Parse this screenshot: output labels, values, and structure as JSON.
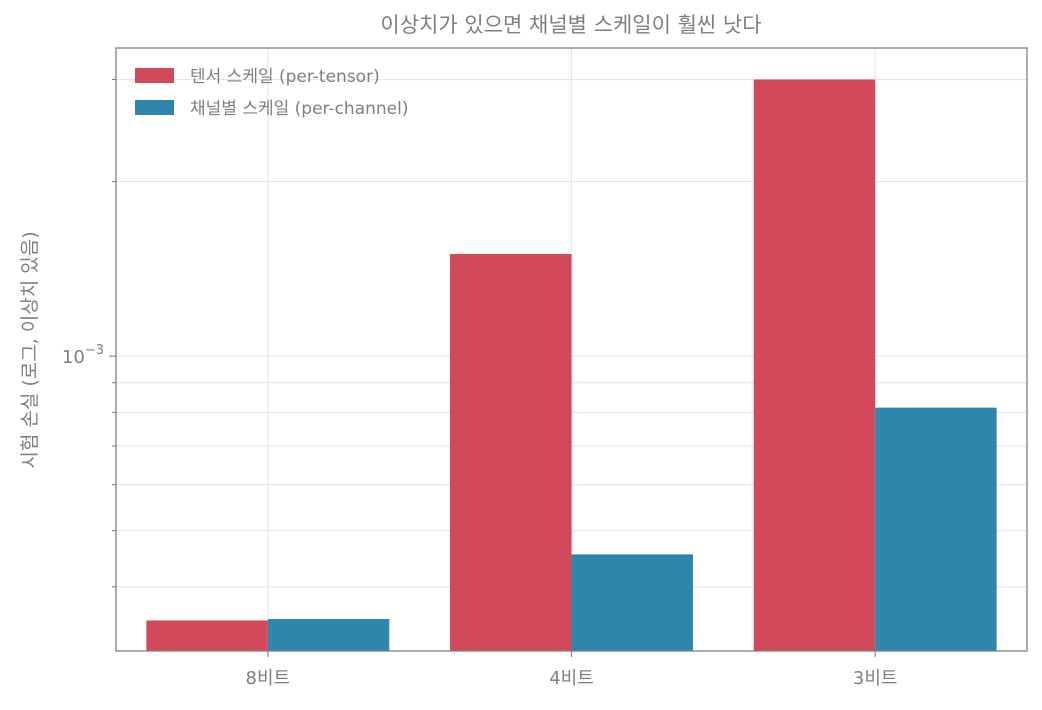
{
  "chart_data": {
    "type": "bar",
    "title": "이상치가 있으면 채널별 스케일이 훨씬 낫다",
    "xlabel": "",
    "ylabel": "시험 손실 (로그, 이상치 있음)",
    "yscale": "log",
    "ylim": [
      0.00031,
      0.0034
    ],
    "categories": [
      "8비트",
      "4비트",
      "3비트"
    ],
    "series": [
      {
        "name": "텐서 스케일 (per-tensor)",
        "color": "#d1495b",
        "values": [
          0.00035,
          0.0015,
          0.003
        ]
      },
      {
        "name": "채널별 스케일 (per-channel)",
        "color": "#2e86ab",
        "values": [
          0.000352,
          0.000455,
          0.000815
        ]
      }
    ],
    "y_ticks": [
      {
        "value": 0.001,
        "base": "10",
        "exponent": "−3"
      }
    ],
    "grid": true,
    "legend_position": "top-left"
  }
}
